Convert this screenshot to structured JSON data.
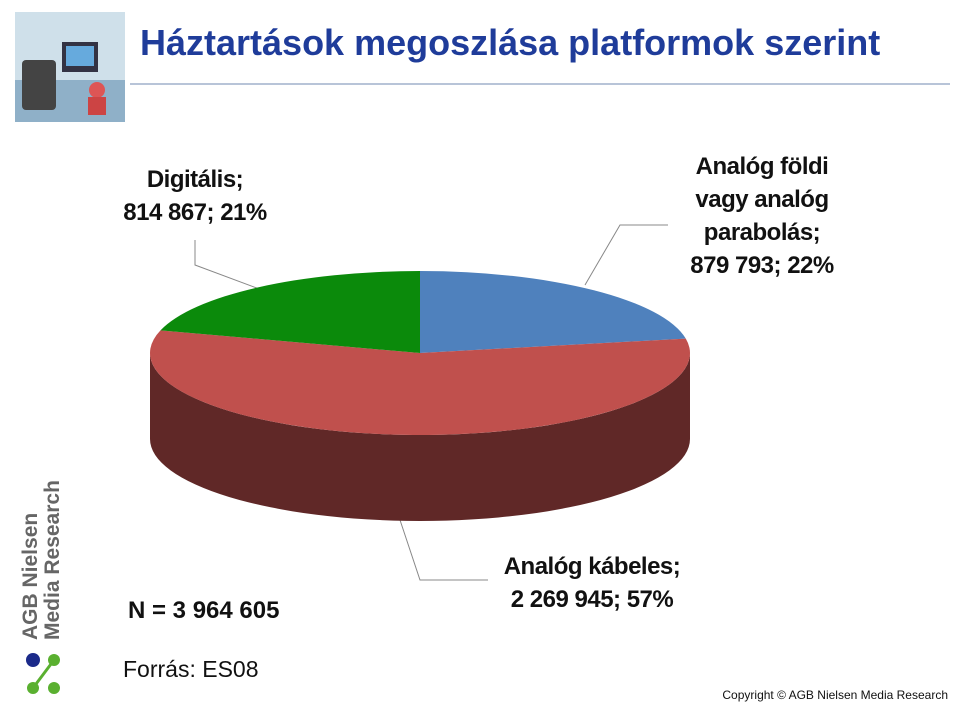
{
  "header": {
    "title": "Háztartások megoszlása platformok szerint"
  },
  "chart_data": {
    "type": "pie",
    "style": "3d",
    "categories": [
      "Analóg földi\nvagy analóg\nparabolás;",
      "Analóg kábeles;",
      "Digitális;"
    ],
    "values": [
      879793,
      2269945,
      814867
    ],
    "value_labels": [
      "879 793; 22%",
      "2 269 945; 57%",
      "814 867; 21%"
    ],
    "colors": [
      "#4f81bd",
      "#c0504d",
      "#0b8a0b"
    ],
    "note": "N = 3 964 605"
  },
  "footer": {
    "source": "Forrás: ES08",
    "logo": "AGB Nielsen\nMedia Research",
    "copyright": "Copyright © AGB Nielsen Media Research"
  }
}
